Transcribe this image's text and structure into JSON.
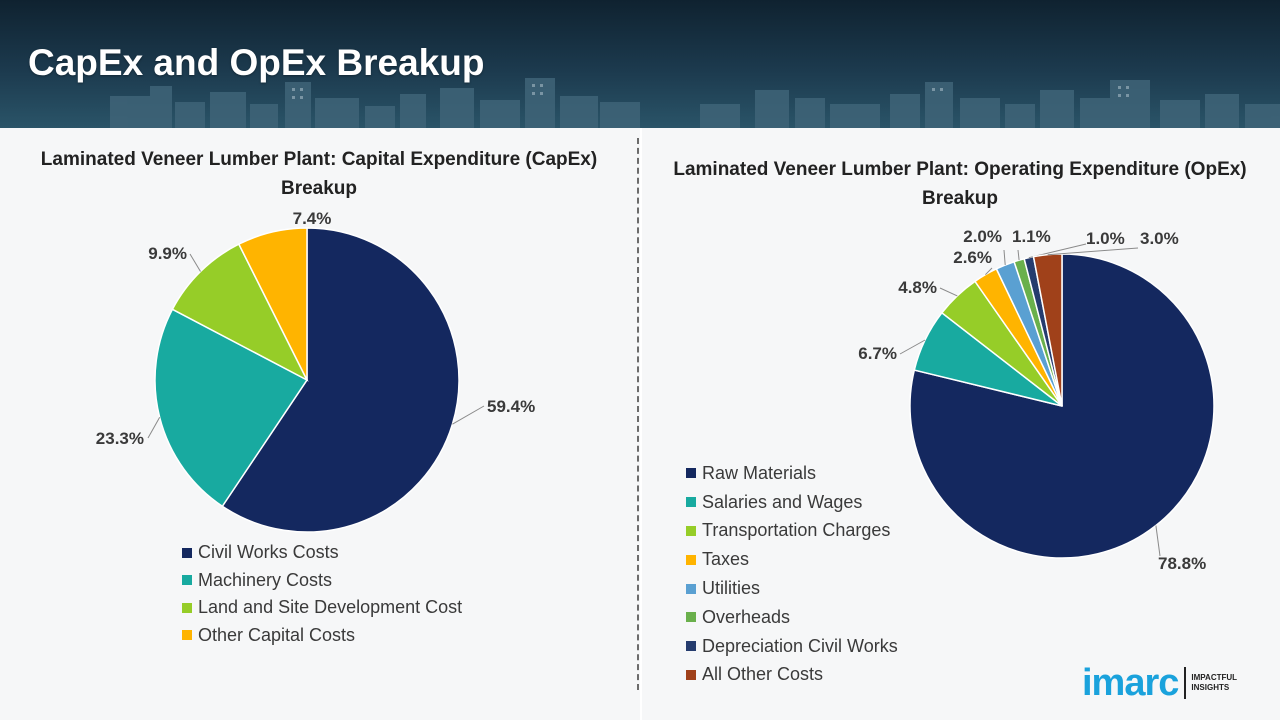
{
  "page": {
    "title": "CapEx and OpEx Breakup"
  },
  "brand": {
    "logo_text": "imarc",
    "tagline_line1": "IMPACTFUL",
    "tagline_line2": "INSIGHTS",
    "logo_color": "#1aa2dc"
  },
  "chart_data": [
    {
      "type": "pie",
      "title": "Laminated Veneer Lumber Plant: Capital Expenditure (CapEx) Breakup",
      "legend_position": "bottom",
      "slices": [
        {
          "label": "Civil Works Costs",
          "value": 59.4,
          "display": "59.4%",
          "color": "#14285f"
        },
        {
          "label": "Machinery Costs",
          "value": 23.3,
          "display": "23.3%",
          "color": "#18aaa0"
        },
        {
          "label": "Land and Site Development Cost",
          "value": 9.9,
          "display": "9.9%",
          "color": "#96cd28"
        },
        {
          "label": "Other Capital Costs",
          "value": 7.4,
          "display": "7.4%",
          "color": "#ffb400"
        }
      ]
    },
    {
      "type": "pie",
      "title": "Laminated Veneer Lumber Plant: Operating Expenditure (OpEx) Breakup",
      "legend_position": "left",
      "slices": [
        {
          "label": "Raw Materials",
          "value": 78.8,
          "display": "78.8%",
          "color": "#14285f"
        },
        {
          "label": "Salaries and Wages",
          "value": 6.7,
          "display": "6.7%",
          "color": "#18aaa0"
        },
        {
          "label": "Transportation Charges",
          "value": 4.8,
          "display": "4.8%",
          "color": "#96cd28"
        },
        {
          "label": "Taxes",
          "value": 2.6,
          "display": "2.6%",
          "color": "#ffb400"
        },
        {
          "label": "Utilities",
          "value": 2.0,
          "display": "2.0%",
          "color": "#5aa0d2"
        },
        {
          "label": "Overheads",
          "value": 1.1,
          "display": "1.1%",
          "color": "#6ab04c"
        },
        {
          "label": "Depreciation Civil Works",
          "value": 1.0,
          "display": "1.0%",
          "color": "#253c6e"
        },
        {
          "label": "All Other Costs",
          "value": 3.0,
          "display": "3.0%",
          "color": "#a0411a"
        }
      ]
    }
  ]
}
